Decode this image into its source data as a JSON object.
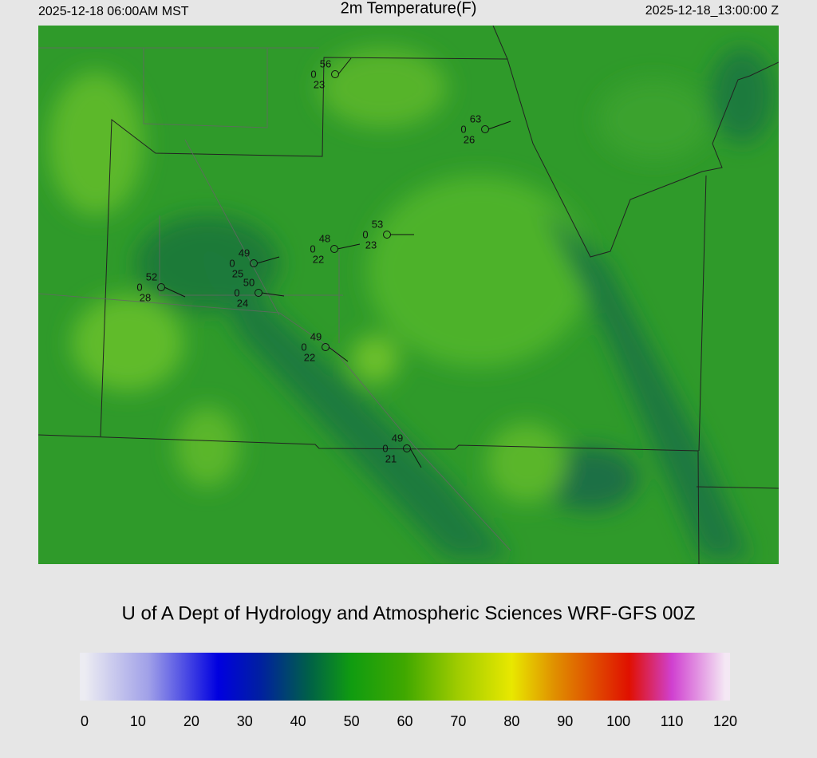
{
  "header": {
    "left": "2025-12-18 06:00AM MST",
    "title": "2m Temperature(F)",
    "right": "2025-12-18_13:00:00 Z"
  },
  "stations": [
    {
      "temp": 56,
      "wind": 0,
      "dewpoint": 23
    },
    {
      "temp": 63,
      "wind": 0,
      "dewpoint": 26
    },
    {
      "temp": 53,
      "wind": 0,
      "dewpoint": 23
    },
    {
      "temp": 48,
      "wind": 0,
      "dewpoint": 22
    },
    {
      "temp": 49,
      "wind": 0,
      "dewpoint": 25
    },
    {
      "temp": 52,
      "wind": 0,
      "dewpoint": 28
    },
    {
      "temp": 50,
      "wind": 0,
      "dewpoint": 24
    },
    {
      "temp": 49,
      "wind": 0,
      "dewpoint": 22
    },
    {
      "temp": 49,
      "wind": 0,
      "dewpoint": 21
    }
  ],
  "credit": "U of A Dept of Hydrology and Atmospheric Sciences WRF-GFS 00Z",
  "colorbar": {
    "lim": [
      0,
      120
    ],
    "ticks": [
      0,
      10,
      20,
      30,
      40,
      50,
      60,
      70,
      80,
      90,
      100,
      110,
      120
    ],
    "stops": [
      {
        "value": 0,
        "color": "#ececf2"
      },
      {
        "value": 12,
        "color": "#a0a0e8"
      },
      {
        "value": 25,
        "color": "#0000e0"
      },
      {
        "value": 33,
        "color": "#0020a0"
      },
      {
        "value": 42,
        "color": "#006048"
      },
      {
        "value": 50,
        "color": "#109c10"
      },
      {
        "value": 60,
        "color": "#40a800"
      },
      {
        "value": 70,
        "color": "#a0cc00"
      },
      {
        "value": 80,
        "color": "#e8e800"
      },
      {
        "value": 88,
        "color": "#e09000"
      },
      {
        "value": 102,
        "color": "#e01000"
      },
      {
        "value": 110,
        "color": "#d040d0"
      },
      {
        "value": 120,
        "color": "#f4e8f4"
      }
    ]
  }
}
